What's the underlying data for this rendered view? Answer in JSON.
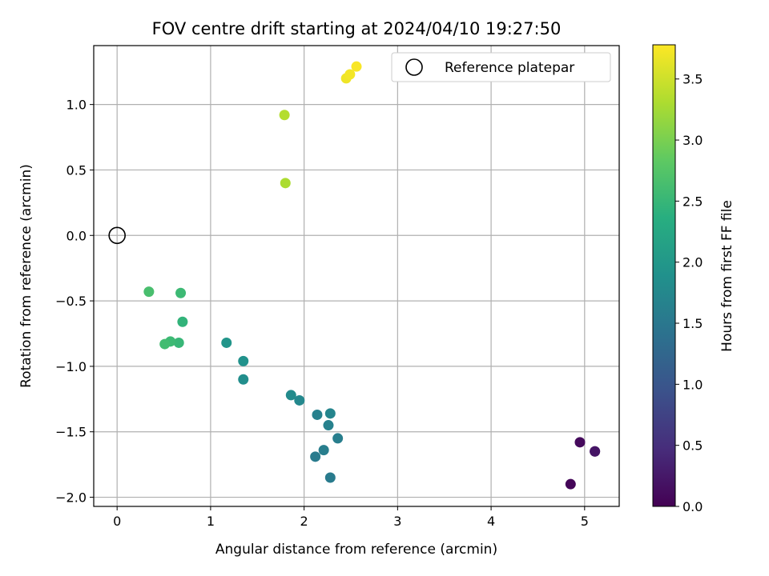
{
  "chart_data": {
    "type": "scatter",
    "title": "FOV centre drift starting at 2024/04/10 19:27:50",
    "xlabel": "Angular distance from reference (arcmin)",
    "ylabel": "Rotation from reference (arcmin)",
    "xlim": [
      -0.25,
      5.37
    ],
    "ylim": [
      -2.07,
      1.45
    ],
    "xticks": [
      0,
      1,
      2,
      3,
      4,
      5
    ],
    "xtick_labels": [
      "0",
      "1",
      "2",
      "3",
      "4",
      "5"
    ],
    "yticks": [
      -2.0,
      -1.5,
      -1.0,
      -0.5,
      0.0,
      0.5,
      1.0
    ],
    "ytick_labels": [
      "−2.0",
      "−1.5",
      "−1.0",
      "−0.5",
      "0.0",
      "0.5",
      "1.0"
    ],
    "grid": true,
    "legend": {
      "position": "top-right",
      "entries": [
        "Reference platepar"
      ]
    },
    "reference_point": {
      "label": "Reference platepar",
      "x": 0,
      "y": 0
    },
    "colorbar": {
      "label": "Hours from first FF file",
      "colormap": "viridis",
      "range": [
        0.0,
        3.78
      ],
      "ticks": [
        0.0,
        0.5,
        1.0,
        1.5,
        2.0,
        2.5,
        3.0,
        3.5
      ],
      "tick_labels": [
        "0.0",
        "0.5",
        "1.0",
        "1.5",
        "2.0",
        "2.5",
        "3.0",
        "3.5"
      ]
    },
    "points": [
      {
        "x": 4.85,
        "y": -1.9,
        "c": 0.05
      },
      {
        "x": 4.95,
        "y": -1.58,
        "c": 0.1
      },
      {
        "x": 5.11,
        "y": -1.65,
        "c": 0.15
      },
      {
        "x": 5.11,
        "y": -1.65,
        "c": 0.2
      },
      {
        "x": 2.28,
        "y": -1.85,
        "c": 1.55
      },
      {
        "x": 2.12,
        "y": -1.69,
        "c": 1.55
      },
      {
        "x": 2.21,
        "y": -1.64,
        "c": 1.6
      },
      {
        "x": 2.36,
        "y": -1.55,
        "c": 1.6
      },
      {
        "x": 2.26,
        "y": -1.45,
        "c": 1.65
      },
      {
        "x": 2.14,
        "y": -1.37,
        "c": 1.65
      },
      {
        "x": 2.28,
        "y": -1.36,
        "c": 1.7
      },
      {
        "x": 1.95,
        "y": -1.26,
        "c": 1.75
      },
      {
        "x": 1.86,
        "y": -1.22,
        "c": 1.8
      },
      {
        "x": 1.35,
        "y": -1.1,
        "c": 1.85
      },
      {
        "x": 1.35,
        "y": -0.96,
        "c": 1.9
      },
      {
        "x": 1.17,
        "y": -0.82,
        "c": 1.95
      },
      {
        "x": 0.7,
        "y": -0.66,
        "c": 2.45
      },
      {
        "x": 0.66,
        "y": -0.82,
        "c": 2.5
      },
      {
        "x": 0.57,
        "y": -0.81,
        "c": 2.55
      },
      {
        "x": 0.51,
        "y": -0.83,
        "c": 2.6
      },
      {
        "x": 0.68,
        "y": -0.44,
        "c": 2.55
      },
      {
        "x": 0.34,
        "y": -0.43,
        "c": 2.65
      },
      {
        "x": 1.8,
        "y": 0.4,
        "c": 3.3
      },
      {
        "x": 1.79,
        "y": 0.92,
        "c": 3.35
      },
      {
        "x": 2.45,
        "y": 1.2,
        "c": 3.7
      },
      {
        "x": 2.49,
        "y": 1.23,
        "c": 3.72
      },
      {
        "x": 2.56,
        "y": 1.29,
        "c": 3.75
      }
    ]
  }
}
